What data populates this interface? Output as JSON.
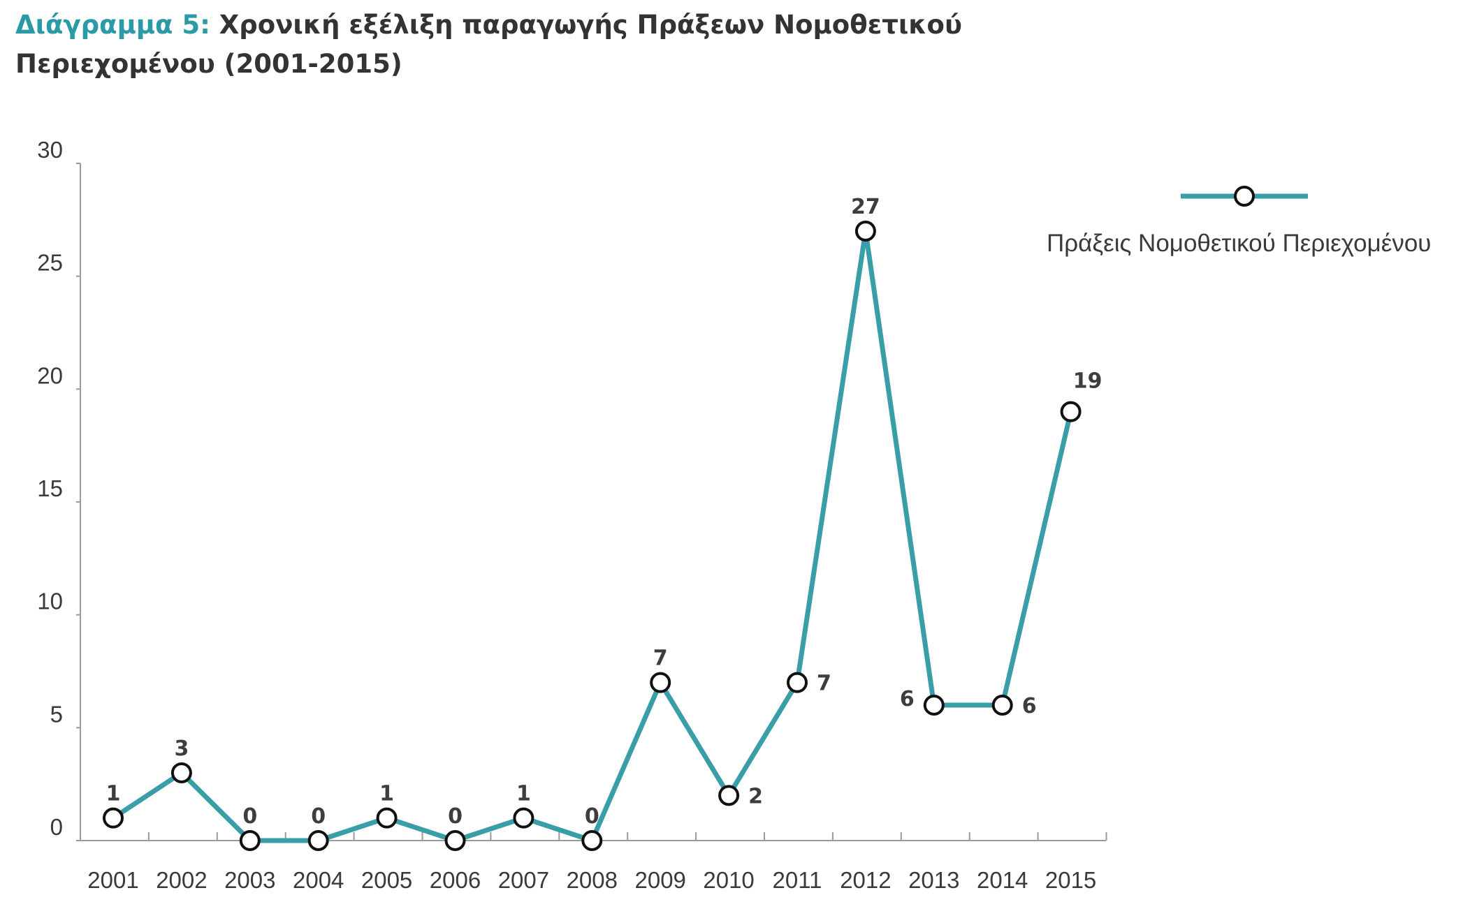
{
  "title": {
    "prefix": "Διάγραμμα 5:",
    "line1": "Χρονική εξέλιξη παραγωγής Πράξεων Νομοθετικού",
    "line2": "Περιεχομένου (2001-2015)"
  },
  "colors": {
    "series": "#3a9ea8",
    "title_accent": "#2c9aa6",
    "axis": "#9a9a9a",
    "text": "#3a3a3a",
    "marker_fill": "#ffffff",
    "marker_stroke": "#111111"
  },
  "chart_data": {
    "type": "line",
    "title": "Διάγραμμα 5: Χρονική εξέλιξη παραγωγής Πράξεων Νομοθετικού Περιεχομένου (2001-2015)",
    "xlabel": "",
    "ylabel": "",
    "categories": [
      "2001",
      "2002",
      "2003",
      "2004",
      "2005",
      "2006",
      "2007",
      "2008",
      "2009",
      "2010",
      "2011",
      "2012",
      "2013",
      "2014",
      "2015"
    ],
    "series": [
      {
        "name": "Πράξεις Νομοθετικού Περιεχομένου",
        "values": [
          1,
          3,
          0,
          0,
          1,
          0,
          1,
          0,
          7,
          2,
          7,
          27,
          6,
          6,
          19
        ]
      }
    ],
    "ylim": [
      0,
      30
    ],
    "yticks": [
      0,
      5,
      10,
      15,
      20,
      25,
      30
    ],
    "grid": false,
    "legend": "top-right",
    "data_labels": true
  }
}
